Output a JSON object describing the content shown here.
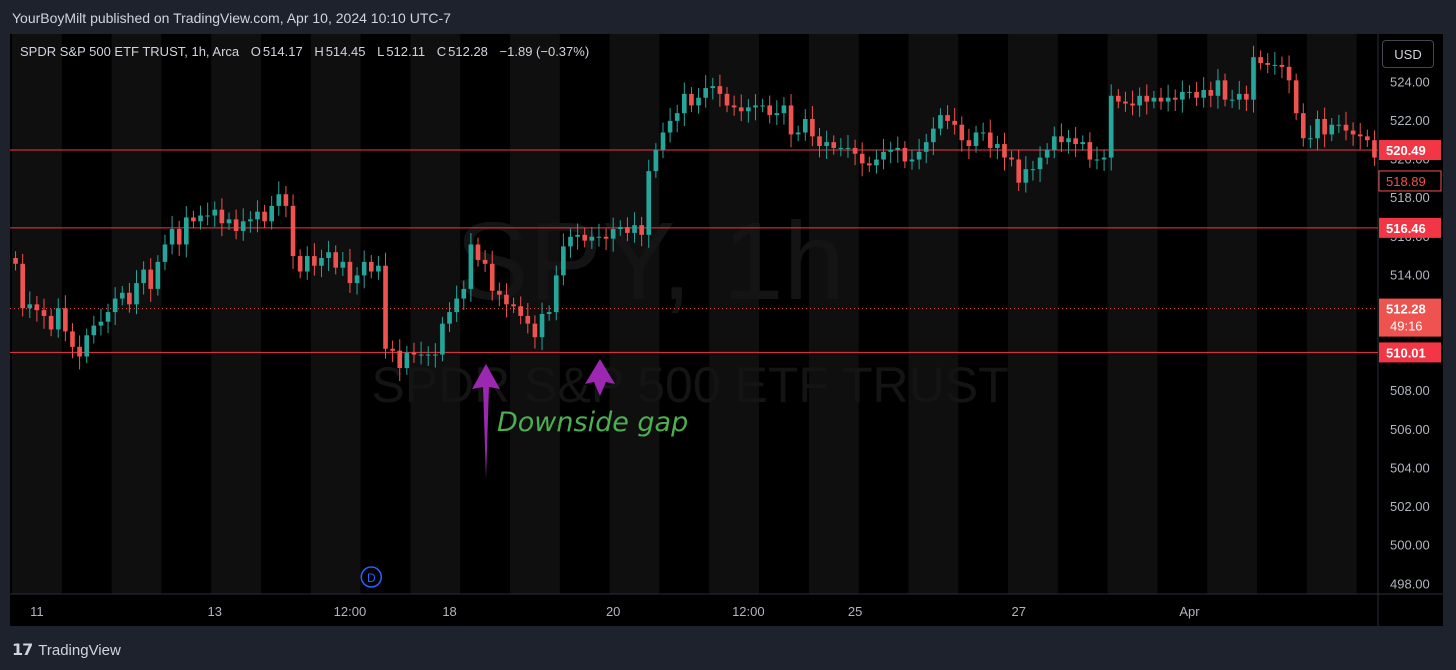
{
  "header": {
    "published_by": "YourBoyMilt published on TradingView.com, Apr 10, 2024 10:10 UTC-7"
  },
  "legend": {
    "symbol": "SPDR S&P 500 ETF TRUST, 1h, Arca",
    "open_label": "O",
    "open": "514.17",
    "high_label": "H",
    "high": "514.45",
    "low_label": "L",
    "low": "512.11",
    "close_label": "C",
    "close": "512.28",
    "change": "−1.89 (−0.37%)"
  },
  "currency_button": "USD",
  "watermark": {
    "ticker": "SPY, 1h",
    "name": "SPDR S&P 500 ETF TRUST"
  },
  "annotation": {
    "text": "Downside gap",
    "color": "#4caf50",
    "arrow_color": "#9c27b0"
  },
  "footer": {
    "brand": "TradingView"
  },
  "colors": {
    "up": "#26a69a",
    "down": "#ef5350",
    "level_line": "#f23645"
  },
  "chart_data": {
    "type": "candlestick",
    "title": "SPDR S&P 500 ETF TRUST, 1h, Arca",
    "ylim": [
      497.5,
      526.5
    ],
    "y_ticks": [
      "498.00",
      "500.00",
      "502.00",
      "504.00",
      "506.00",
      "508.00",
      "510.00",
      "512.00",
      "514.00",
      "516.00",
      "518.00",
      "520.00",
      "522.00",
      "524.00"
    ],
    "x_ticks": [
      {
        "label": "11",
        "i": 3
      },
      {
        "label": "13",
        "i": 28
      },
      {
        "label": "12:00",
        "i": 47
      },
      {
        "label": "18",
        "i": 61
      },
      {
        "label": "20",
        "i": 84
      },
      {
        "label": "12:00",
        "i": 103
      },
      {
        "label": "25",
        "i": 118
      },
      {
        "label": "27",
        "i": 141
      },
      {
        "label": "Apr",
        "i": 165
      }
    ],
    "horizontal_levels": [
      {
        "value": 520.49,
        "label": "520.49"
      },
      {
        "value": 516.46,
        "label": "516.46"
      },
      {
        "value": 510.01,
        "label": "510.01"
      }
    ],
    "price_tags": [
      {
        "value": 518.89,
        "label": "518.89",
        "style": "outline"
      },
      {
        "value": 512.28,
        "label": "512.28",
        "sublabel": "49:16",
        "style": "filled"
      }
    ],
    "current_price": 512.28,
    "event_marker": {
      "label": "D",
      "i": 50
    },
    "closes": [
      514.6,
      512.3,
      512.5,
      512.2,
      511.9,
      511.2,
      512.3,
      511.1,
      510.3,
      509.8,
      510.9,
      511.4,
      511.6,
      512.1,
      512.8,
      513.1,
      512.5,
      513.6,
      514.3,
      513.3,
      514.7,
      515.6,
      516.4,
      515.6,
      517.0,
      516.8,
      517.1,
      517.1,
      517.4,
      516.7,
      516.9,
      516.3,
      516.8,
      516.9,
      517.3,
      516.8,
      517.6,
      518.2,
      517.6,
      515.0,
      514.2,
      515.0,
      514.5,
      514.9,
      515.2,
      514.4,
      514.7,
      513.6,
      514.0,
      514.7,
      514.2,
      514.5,
      510.2,
      510.1,
      509.2,
      510.0,
      509.9,
      509.9,
      509.9,
      509.9,
      511.5,
      512.1,
      512.8,
      513.3,
      515.6,
      514.8,
      514.6,
      513.2,
      513.0,
      512.5,
      512.4,
      511.9,
      511.5,
      510.8,
      512.0,
      512.1,
      514.0,
      515.5,
      516.0,
      516.1,
      515.8,
      516.0,
      516.0,
      515.9,
      516.4,
      516.5,
      516.2,
      516.6,
      516.1,
      519.4,
      520.5,
      521.4,
      522.0,
      522.4,
      523.4,
      522.8,
      523.2,
      523.7,
      523.8,
      523.4,
      522.8,
      522.7,
      522.5,
      522.7,
      522.8,
      522.8,
      522.3,
      522.4,
      522.8,
      521.3,
      521.4,
      522.1,
      521.2,
      520.7,
      520.9,
      520.6,
      520.6,
      520.6,
      520.3,
      519.8,
      519.7,
      520.0,
      520.4,
      520.5,
      520.6,
      519.9,
      520.0,
      520.4,
      520.9,
      521.6,
      522.3,
      522.0,
      521.8,
      521.0,
      520.7,
      521.4,
      521.4,
      520.6,
      520.8,
      520.1,
      520.0,
      518.8,
      519.5,
      519.5,
      520.1,
      520.5,
      521.2,
      520.9,
      521.1,
      520.8,
      520.9,
      520.0,
      520.0,
      520.1,
      523.3,
      523.0,
      522.9,
      522.8,
      523.3,
      523.0,
      523.2,
      523.0,
      523.2,
      523.1,
      523.5,
      523.5,
      523.2,
      523.6,
      523.3,
      524.1,
      523.1,
      523.1,
      523.4,
      523.1,
      525.3,
      525.0,
      524.9,
      524.9,
      524.8,
      524.1,
      522.4,
      521.1,
      521.1,
      522.1,
      521.3,
      521.8,
      521.8,
      521.5,
      521.3,
      521.2,
      521.0,
      520.1
    ]
  }
}
